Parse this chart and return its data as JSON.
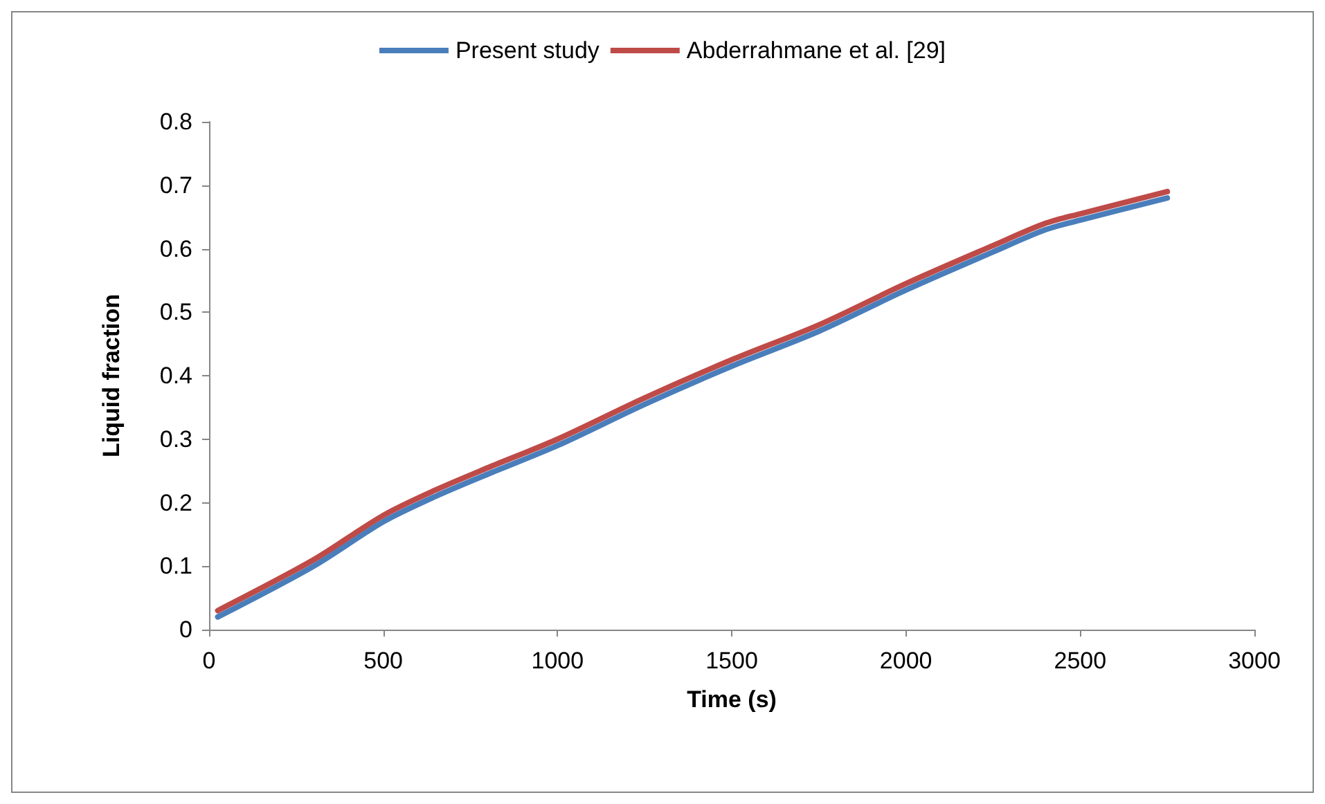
{
  "chart_data": {
    "type": "line",
    "xlabel": "Time (s)",
    "ylabel": "Liquid fraction",
    "x": [
      25,
      300,
      500,
      650,
      800,
      1000,
      1250,
      1500,
      1750,
      2000,
      2250,
      2400,
      2500,
      2750
    ],
    "series": [
      {
        "name": "Present study",
        "color": "#4a7ebb",
        "values": [
          0.02,
          0.1,
          0.17,
          0.21,
          0.245,
          0.29,
          0.355,
          0.415,
          0.47,
          0.535,
          0.595,
          0.63,
          0.645,
          0.68
        ]
      },
      {
        "name": "Abderrahmane et al. [29]",
        "color": "#be4b48",
        "values": [
          0.03,
          0.11,
          0.18,
          0.22,
          0.255,
          0.3,
          0.365,
          0.425,
          0.48,
          0.545,
          0.605,
          0.64,
          0.655,
          0.69
        ]
      }
    ],
    "xlim": [
      0,
      3000
    ],
    "xticks": [
      0,
      500,
      1000,
      1500,
      2000,
      2500,
      3000
    ],
    "ylim": [
      0,
      0.8
    ],
    "yticks": [
      0,
      0.1,
      0.2,
      0.3,
      0.4,
      0.5,
      0.6,
      0.7,
      0.8
    ],
    "grid": false,
    "legend": "top",
    "marker": "none",
    "line_style": "solid"
  }
}
